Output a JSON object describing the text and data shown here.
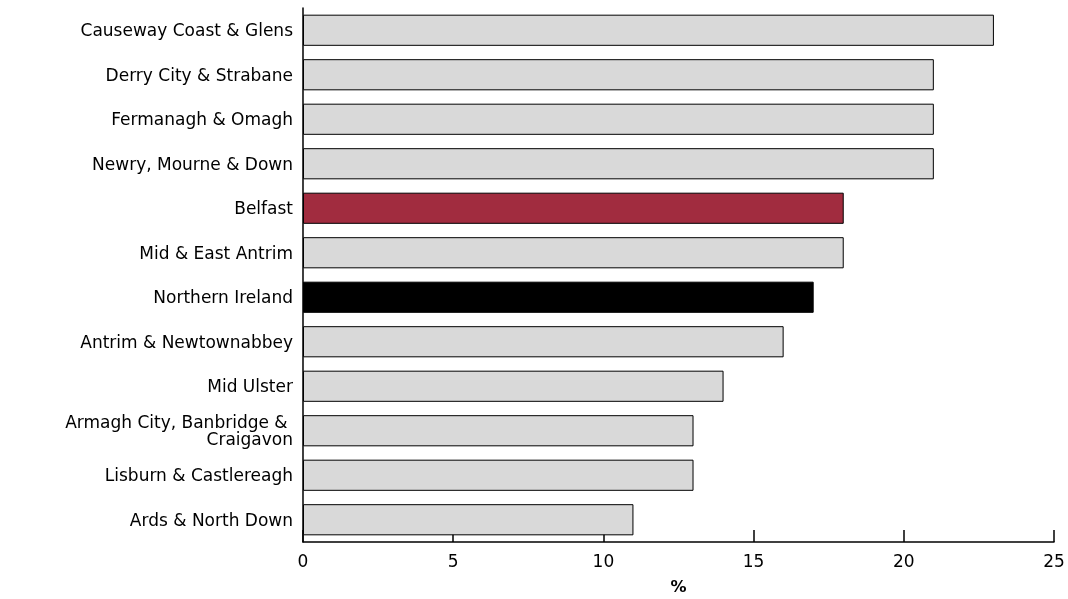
{
  "chart_data": {
    "type": "bar",
    "orientation": "horizontal",
    "categories": [
      "Causeway Coast & Glens",
      "Derry City & Strabane",
      "Fermanagh & Omagh",
      "Newry, Mourne & Down",
      "Belfast",
      "Mid & East Antrim",
      "Northern Ireland",
      "Antrim & Newtownabbey",
      "Mid Ulster",
      "Armagh City, Banbridge & Craigavon",
      "Lisburn & Castlereagh",
      "Ards & North Down"
    ],
    "values": [
      23,
      21,
      21,
      21,
      18,
      18,
      17,
      16,
      14,
      13,
      13,
      11
    ],
    "colors": [
      "#d9d9d9",
      "#d9d9d9",
      "#d9d9d9",
      "#d9d9d9",
      "#a12c3f",
      "#d9d9d9",
      "#000000",
      "#d9d9d9",
      "#d9d9d9",
      "#d9d9d9",
      "#d9d9d9",
      "#d9d9d9"
    ],
    "xlabel": "%",
    "xlim": [
      0,
      25
    ],
    "xticks": [
      0,
      5,
      10,
      15,
      20,
      25
    ],
    "grid": false
  }
}
